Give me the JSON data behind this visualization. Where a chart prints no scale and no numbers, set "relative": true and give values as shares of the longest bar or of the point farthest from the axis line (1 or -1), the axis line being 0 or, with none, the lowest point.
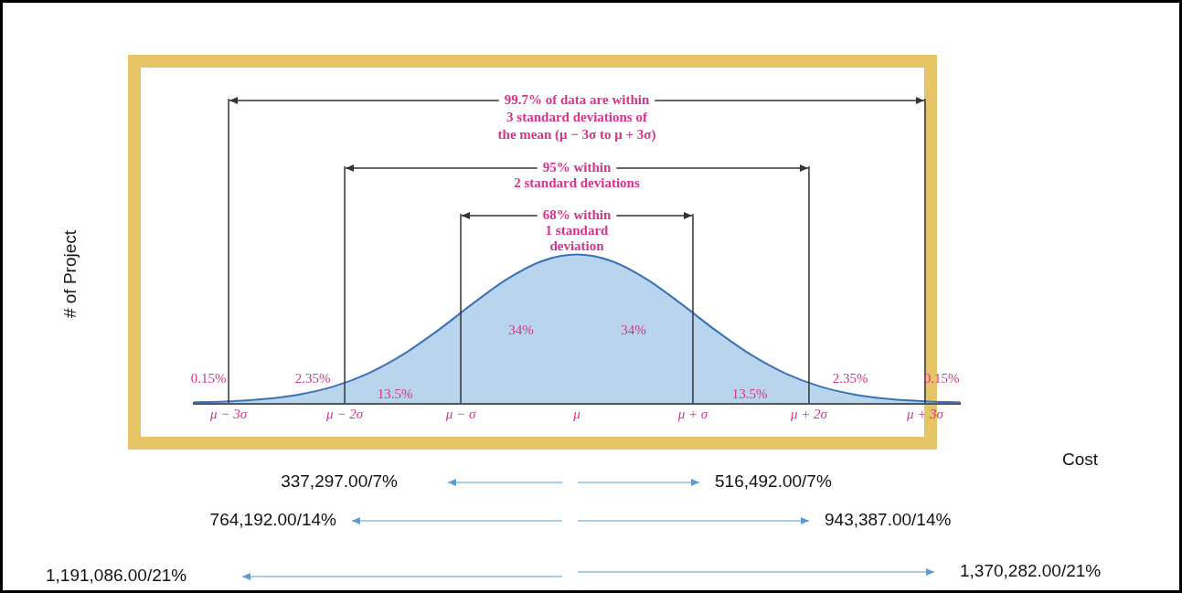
{
  "chart_data": {
    "type": "area",
    "relative": true,
    "x": [
      -3.3,
      -3.0,
      -2.7,
      -2.4,
      -2.1,
      -1.8,
      -1.5,
      -1.2,
      -0.9,
      -0.6,
      -0.3,
      0,
      0.3,
      0.6,
      0.9,
      1.2,
      1.5,
      1.8,
      2.1,
      2.4,
      2.7,
      3.0,
      3.3
    ],
    "series": [
      {
        "color": "#3a72b8",
        "values": [
          0.004,
          0.011,
          0.026,
          0.056,
          0.11,
          0.198,
          0.325,
          0.487,
          0.667,
          0.835,
          0.956,
          1,
          0.956,
          0.835,
          0.667,
          0.487,
          0.325,
          0.198,
          0.11,
          0.056,
          0.026,
          0.011,
          0.004
        ]
      }
    ],
    "xlim": [
      -3.3,
      3.3
    ],
    "xticks": [
      {
        "value": -3,
        "label": "μ − 3σ"
      },
      {
        "value": -2,
        "label": "μ − 2σ"
      },
      {
        "value": -1,
        "label": "μ − σ"
      },
      {
        "value": 0,
        "label": "μ"
      },
      {
        "value": 1,
        "label": "μ + σ"
      },
      {
        "value": 2,
        "label": "μ + 2σ"
      },
      {
        "value": 3,
        "label": "μ + 3σ"
      }
    ],
    "ref_lines": [
      {
        "axis": "x",
        "value": -3
      },
      {
        "axis": "x",
        "value": 3
      },
      {
        "axis": "x",
        "value": -2
      },
      {
        "axis": "x",
        "value": 2
      },
      {
        "axis": "x",
        "value": -1
      },
      {
        "axis": "x",
        "value": 1
      }
    ],
    "annotations": [
      "99.7% of data are within\n3 standard deviations of\nthe mean (μ − 3σ to μ + 3σ)",
      "95% within\n2 standard deviations",
      "68% within\n1 standard\ndeviation",
      "0.15%",
      "2.35%",
      "13.5%",
      "34%",
      "34%",
      "13.5%",
      "2.35%",
      "0.15%",
      "337,297.00/7%",
      "516,492.00/7%",
      "764,192.00/14%",
      "943,387.00/14%",
      "1,191,086.00/21%",
      "1,370,282.00/21%",
      "Cost",
      "# of Project"
    ],
    "grid": false,
    "legend": false
  }
}
